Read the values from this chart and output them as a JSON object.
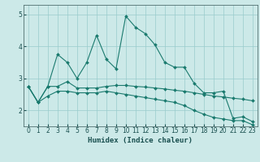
{
  "xlabel": "Humidex (Indice chaleur)",
  "ylabel": "",
  "background_color": "#cce9e8",
  "grid_color": "#99cccc",
  "line_color": "#1a7a6e",
  "xlim": [
    -0.5,
    23.5
  ],
  "ylim": [
    1.5,
    5.3
  ],
  "xticks": [
    0,
    1,
    2,
    3,
    4,
    5,
    6,
    7,
    8,
    9,
    10,
    11,
    12,
    13,
    14,
    15,
    16,
    17,
    18,
    19,
    20,
    21,
    22,
    23
  ],
  "yticks": [
    2,
    3,
    4,
    5
  ],
  "line1_x": [
    0,
    1,
    2,
    3,
    4,
    5,
    6,
    7,
    8,
    9,
    10,
    11,
    12,
    13,
    14,
    15,
    16,
    17,
    18,
    19,
    20,
    21,
    22,
    23
  ],
  "line1_y": [
    2.75,
    2.25,
    2.75,
    3.75,
    3.5,
    3.0,
    3.5,
    4.35,
    3.6,
    3.3,
    4.95,
    4.6,
    4.4,
    4.05,
    3.5,
    3.35,
    3.35,
    2.85,
    2.55,
    2.55,
    2.6,
    1.75,
    1.8,
    1.65
  ],
  "line2_x": [
    0,
    1,
    2,
    3,
    4,
    5,
    6,
    7,
    8,
    9,
    10,
    11,
    12,
    13,
    14,
    15,
    16,
    17,
    18,
    19,
    20,
    21,
    22,
    23
  ],
  "line2_y": [
    2.75,
    2.25,
    2.75,
    2.75,
    2.9,
    2.7,
    2.7,
    2.7,
    2.75,
    2.78,
    2.78,
    2.75,
    2.73,
    2.7,
    2.67,
    2.63,
    2.6,
    2.55,
    2.5,
    2.45,
    2.42,
    2.38,
    2.35,
    2.3
  ],
  "line3_x": [
    0,
    1,
    2,
    3,
    4,
    5,
    6,
    7,
    8,
    9,
    10,
    11,
    12,
    13,
    14,
    15,
    16,
    17,
    18,
    19,
    20,
    21,
    22,
    23
  ],
  "line3_y": [
    2.75,
    2.25,
    2.45,
    2.6,
    2.6,
    2.55,
    2.55,
    2.55,
    2.6,
    2.55,
    2.5,
    2.45,
    2.4,
    2.35,
    2.3,
    2.25,
    2.15,
    2.0,
    1.88,
    1.78,
    1.73,
    1.68,
    1.68,
    1.55
  ]
}
